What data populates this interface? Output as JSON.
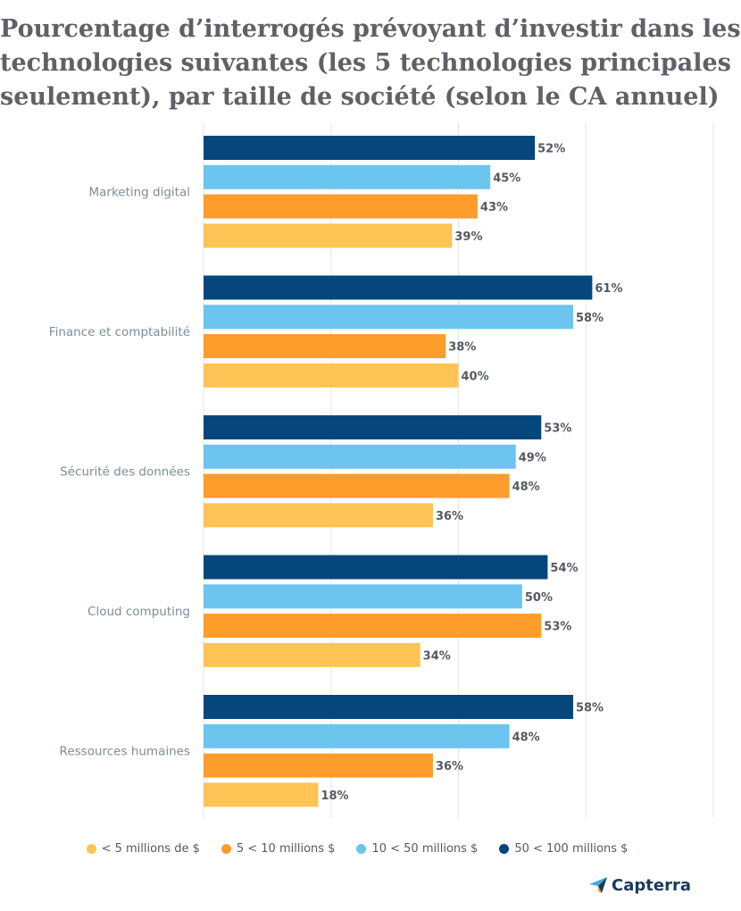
{
  "chart_data": {
    "type": "bar",
    "orientation": "horizontal",
    "title_lines": [
      "Pourcentage d’interrogés prévoyant d’investir dans les",
      "technologies suivantes (les 5 technologies principales",
      "seulement), par taille de société (selon le CA annuel)"
    ],
    "categories": [
      "Marketing digital",
      "Finance et comptabilité",
      "Sécurité des données",
      "Cloud computing",
      "Ressources humaines"
    ],
    "series": [
      {
        "name": "50 < 100 millions $",
        "color": "#05467c",
        "values": [
          52,
          61,
          53,
          54,
          58
        ]
      },
      {
        "name": "10 < 50 millions $",
        "color": "#6bc5ee",
        "values": [
          45,
          58,
          49,
          50,
          48
        ]
      },
      {
        "name": "5 < 10 millions $",
        "color": "#fe9c2c",
        "values": [
          43,
          38,
          48,
          53,
          36
        ]
      },
      {
        "name": "< 5 millions de $",
        "color": "#ffc455",
        "values": [
          39,
          40,
          36,
          34,
          18
        ]
      }
    ],
    "legend_order": [
      "< 5 millions de $",
      "5 < 10 millions $",
      "10 < 50 millions $",
      "50 < 100 millions $"
    ],
    "value_suffix": "%",
    "xlim": [
      0,
      80
    ],
    "gridlines": [
      0,
      20,
      40,
      60,
      80
    ],
    "legend_position": "bottom-center"
  },
  "brand": {
    "name": "Capterra",
    "logo_color": "#1a3a5c",
    "accent_color": "#ff9d28",
    "secondary_color": "#44a8dc"
  }
}
